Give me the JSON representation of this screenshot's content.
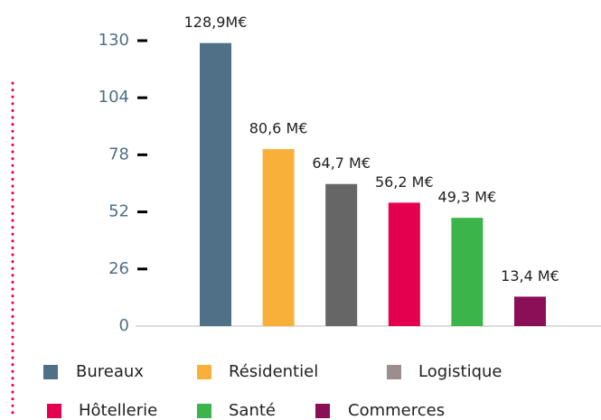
{
  "chart_data": {
    "type": "bar",
    "categories": [
      "Bureaux",
      "Résidentiel",
      "Logistique",
      "Hôtellerie",
      "Santé",
      "Commerces"
    ],
    "values": [
      128.9,
      80.6,
      64.7,
      56.2,
      49.3,
      13.4
    ],
    "value_labels": [
      "128,9M€",
      "80,6 M€",
      "64,7 M€",
      "56,2 M€",
      "49,3 M€",
      "13,4 M€"
    ],
    "colors": [
      "#4f7086",
      "#f9b03a",
      "#666666",
      "#e5004f",
      "#3bb54a",
      "#8b0f56"
    ],
    "legend_colors": [
      "#4f7086",
      "#f9b03a",
      "#9a8f8c",
      "#e5004f",
      "#3bb54a",
      "#8b0f56"
    ],
    "ylim": [
      0,
      130
    ],
    "yticks": [
      0,
      26,
      52,
      78,
      104,
      130
    ],
    "grid": false
  }
}
